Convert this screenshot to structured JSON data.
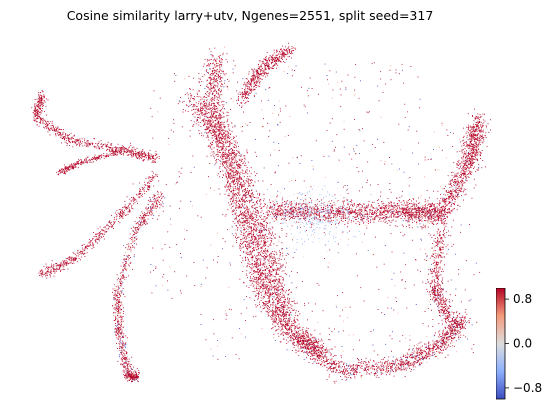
{
  "chart_data": {
    "type": "scatter",
    "title": "Cosine similarity larry+utv, Ngenes=2551, split seed=317",
    "xlabel": "",
    "ylabel": "",
    "axes_visible": false,
    "grid": false,
    "point_color_dominant": "#b40426",
    "colormap": "coolwarm",
    "colorbar": {
      "vmin": -1.0,
      "vmax": 1.0,
      "ticks": [
        0.8,
        0.0,
        -0.8
      ],
      "tick_labels": [
        "0.8",
        "0.0",
        "−0.8"
      ],
      "placement": "right-bottom"
    },
    "colors": {
      "high": "#b40426",
      "mid": "#dddddd",
      "low": "#3b4cc0"
    }
  }
}
